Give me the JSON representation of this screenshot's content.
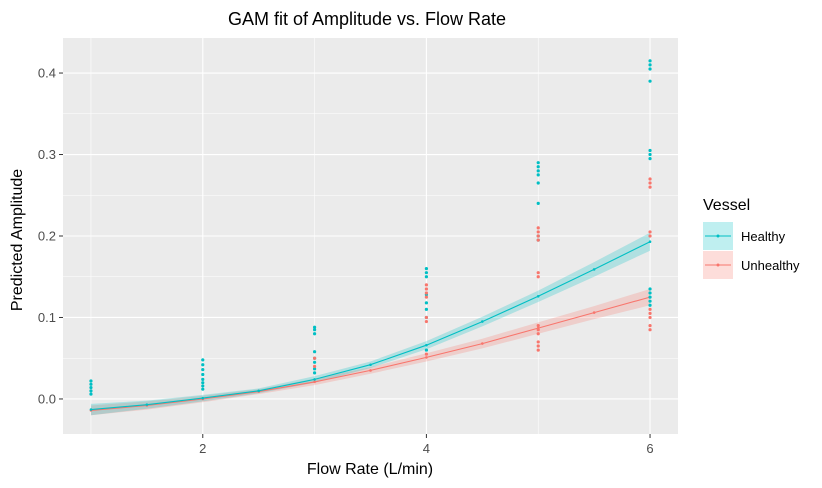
{
  "chart_data": {
    "type": "line",
    "title": "GAM fit of Amplitude vs. Flow Rate",
    "xlabel": "Flow Rate (L/min)",
    "ylabel": "Predicted Amplitude",
    "xlim": [
      0.75,
      6.25
    ],
    "ylim": [
      -0.043,
      0.443
    ],
    "x_ticks": [
      2,
      4,
      6
    ],
    "y_ticks": [
      0.0,
      0.1,
      0.2,
      0.3,
      0.4
    ],
    "y_tick_labels": [
      "0.0",
      "0.1",
      "0.2",
      "0.3",
      "0.4"
    ],
    "grid": true,
    "legend": {
      "title": "Vessel",
      "position": "right"
    },
    "series": [
      {
        "name": "Healthy",
        "color": "#00BFC4",
        "fit": {
          "x": [
            1.0,
            1.5,
            2.0,
            2.5,
            3.0,
            3.5,
            4.0,
            4.5,
            5.0,
            5.5,
            6.0
          ],
          "y": [
            -0.013,
            -0.007,
            0.001,
            0.01,
            0.024,
            0.042,
            0.066,
            0.095,
            0.126,
            0.159,
            0.193
          ],
          "lower": [
            -0.02,
            -0.012,
            -0.003,
            0.007,
            0.02,
            0.038,
            0.061,
            0.089,
            0.119,
            0.15,
            0.182
          ],
          "upper": [
            -0.006,
            -0.002,
            0.005,
            0.013,
            0.028,
            0.046,
            0.071,
            0.101,
            0.133,
            0.168,
            0.204
          ]
        },
        "points": [
          {
            "x": 1,
            "y": [
              0.006,
              0.01,
              0.014,
              0.018,
              0.022
            ]
          },
          {
            "x": 2,
            "y": [
              0.012,
              0.016,
              0.02,
              0.024,
              0.03,
              0.036,
              0.042,
              0.048
            ]
          },
          {
            "x": 3,
            "y": [
              0.032,
              0.037,
              0.045,
              0.05,
              0.058,
              0.08,
              0.085,
              0.088
            ]
          },
          {
            "x": 4,
            "y": [
              0.06,
              0.1,
              0.11,
              0.118,
              0.128,
              0.15,
              0.155,
              0.16
            ]
          },
          {
            "x": 5,
            "y": [
              0.195,
              0.2,
              0.24,
              0.265,
              0.275,
              0.28,
              0.285,
              0.29
            ]
          },
          {
            "x": 6,
            "y": [
              0.115,
              0.12,
              0.125,
              0.13,
              0.135,
              0.295,
              0.3,
              0.305,
              0.39,
              0.405,
              0.41,
              0.415
            ]
          }
        ]
      },
      {
        "name": "Unhealthy",
        "color": "#F8766D",
        "fit": {
          "x": [
            1.0,
            1.5,
            2.0,
            2.5,
            3.0,
            3.5,
            4.0,
            4.5,
            5.0,
            5.5,
            6.0
          ],
          "y": [
            -0.014,
            -0.008,
            0.0,
            0.009,
            0.021,
            0.035,
            0.051,
            0.068,
            0.087,
            0.106,
            0.125
          ],
          "lower": [
            -0.02,
            -0.013,
            -0.004,
            0.006,
            0.017,
            0.031,
            0.046,
            0.062,
            0.08,
            0.098,
            0.115
          ],
          "upper": [
            -0.008,
            -0.003,
            0.004,
            0.012,
            0.025,
            0.039,
            0.056,
            0.074,
            0.094,
            0.114,
            0.135
          ]
        },
        "points": [
          {
            "x": 3,
            "y": [
              0.04,
              0.05
            ]
          },
          {
            "x": 4,
            "y": [
              0.055,
              0.095,
              0.1,
              0.125,
              0.13,
              0.135,
              0.14
            ]
          },
          {
            "x": 5,
            "y": [
              0.06,
              0.065,
              0.07,
              0.08,
              0.085,
              0.09,
              0.15,
              0.155,
              0.195,
              0.2,
              0.205,
              0.21
            ]
          },
          {
            "x": 6,
            "y": [
              0.085,
              0.09,
              0.1,
              0.105,
              0.11,
              0.2,
              0.205,
              0.26,
              0.265,
              0.27
            ]
          }
        ]
      }
    ]
  }
}
